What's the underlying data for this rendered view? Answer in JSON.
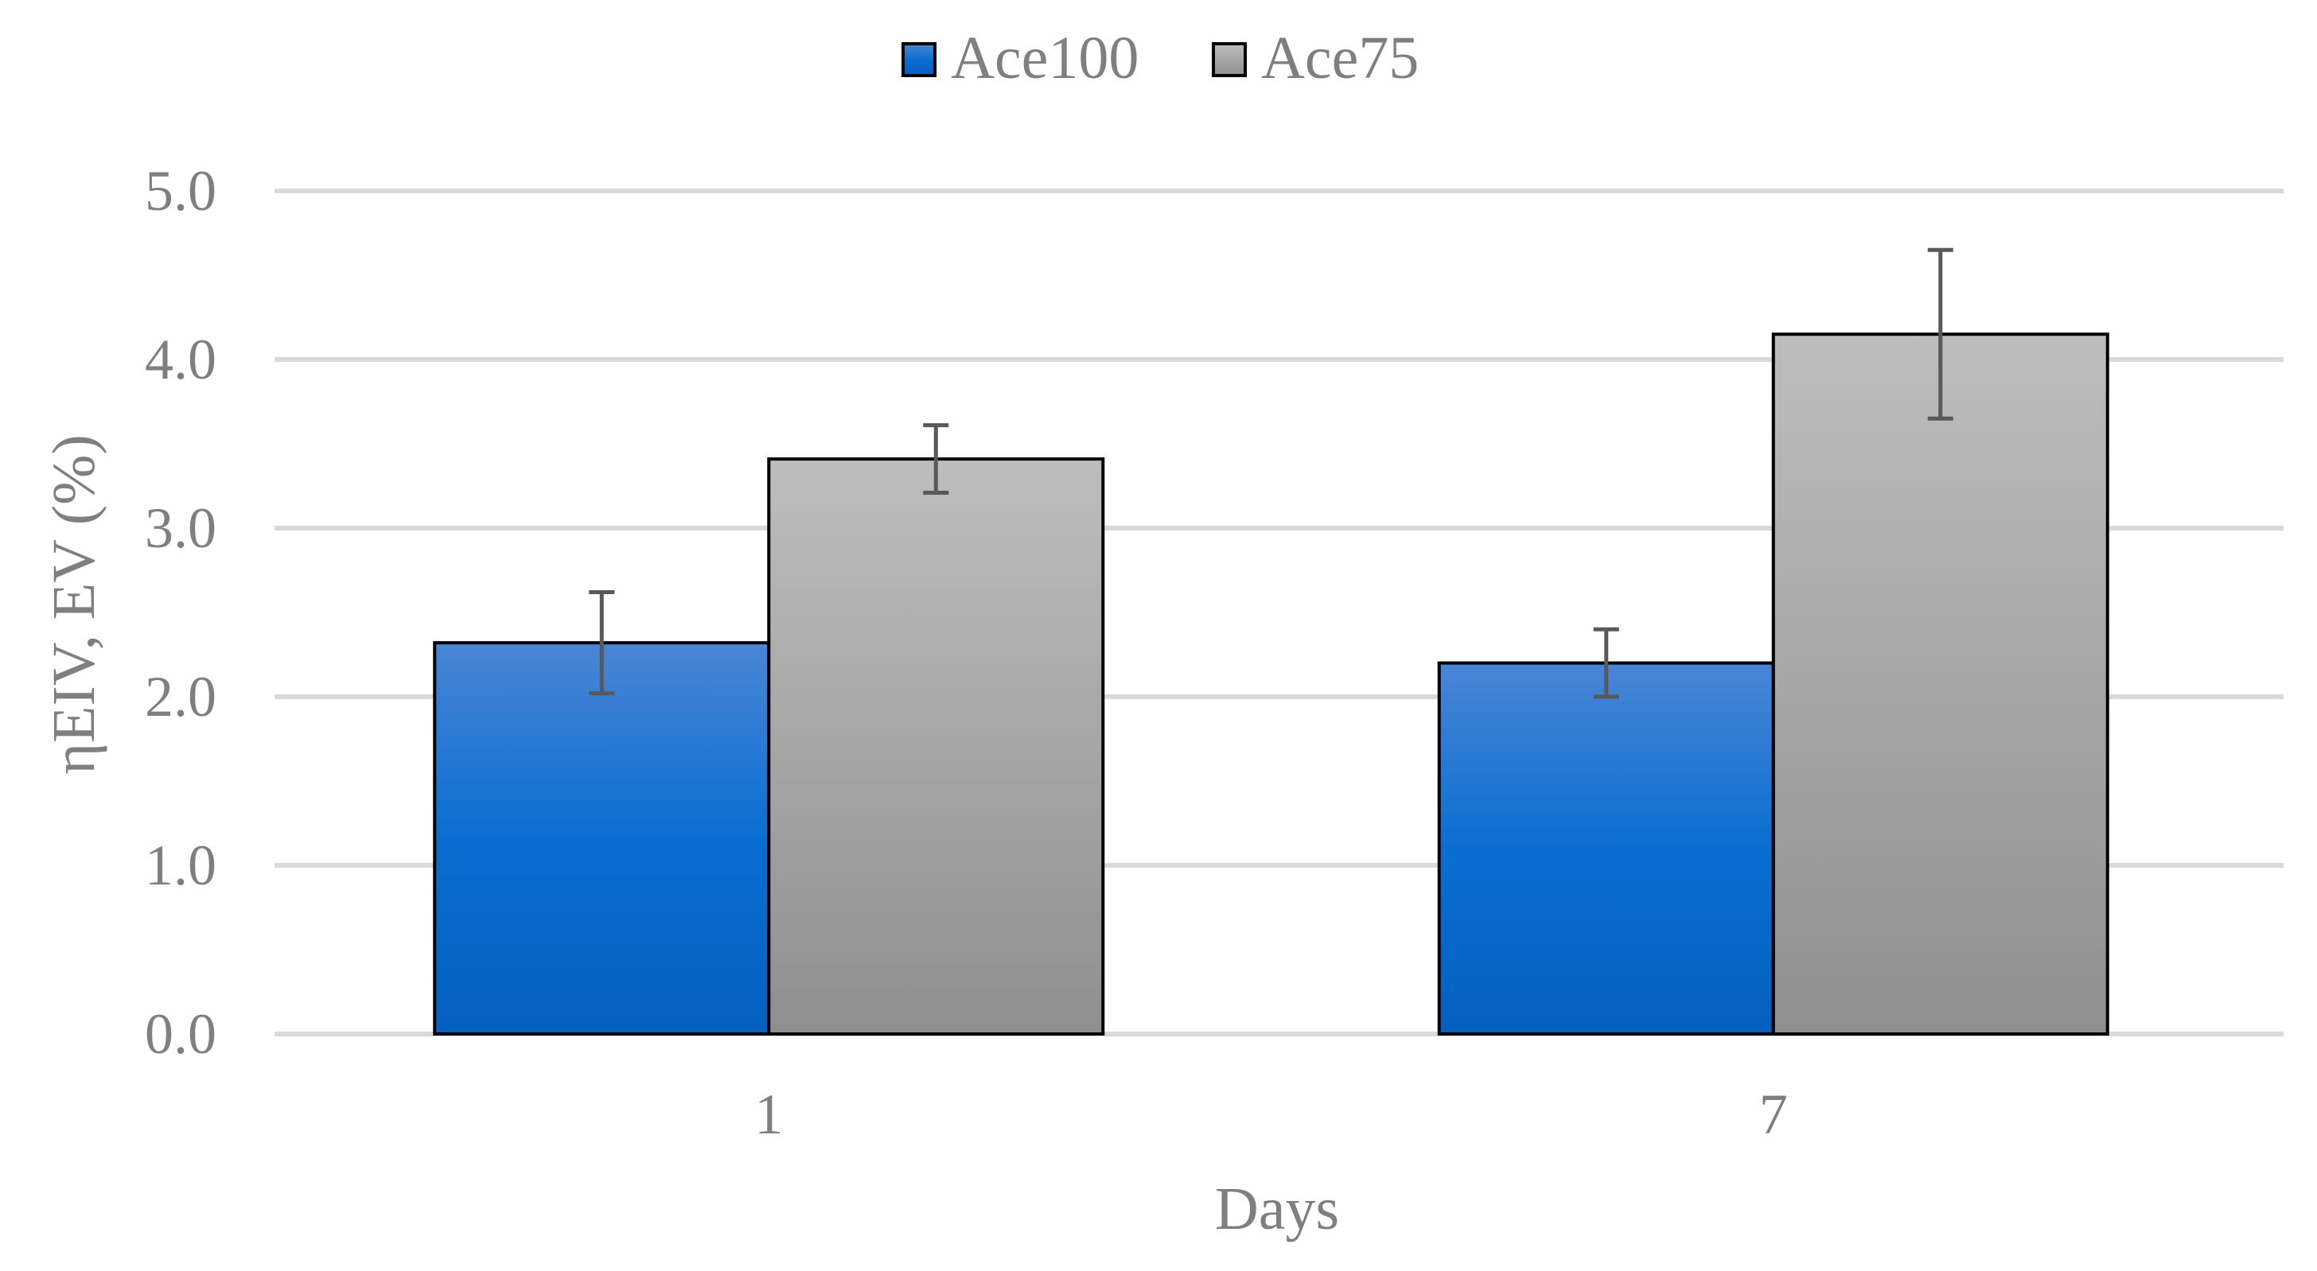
{
  "chart_data": {
    "type": "bar",
    "title": "",
    "xlabel": "Days",
    "ylabel": "ηEIV, EV (%)",
    "categories": [
      "1",
      "7"
    ],
    "series": [
      {
        "name": "Ace100",
        "values": [
          2.32,
          2.2
        ],
        "error": [
          0.3,
          0.2
        ],
        "color": "#0a6ed1"
      },
      {
        "name": "Ace75",
        "values": [
          3.41,
          4.15
        ],
        "error": [
          0.2,
          0.5
        ],
        "color": "#a6a6a6"
      }
    ],
    "ylim": [
      0,
      5
    ],
    "yticks": [
      "0.0",
      "1.0",
      "2.0",
      "3.0",
      "4.0",
      "5.0"
    ],
    "grid": true,
    "legend_position": "top-center"
  }
}
